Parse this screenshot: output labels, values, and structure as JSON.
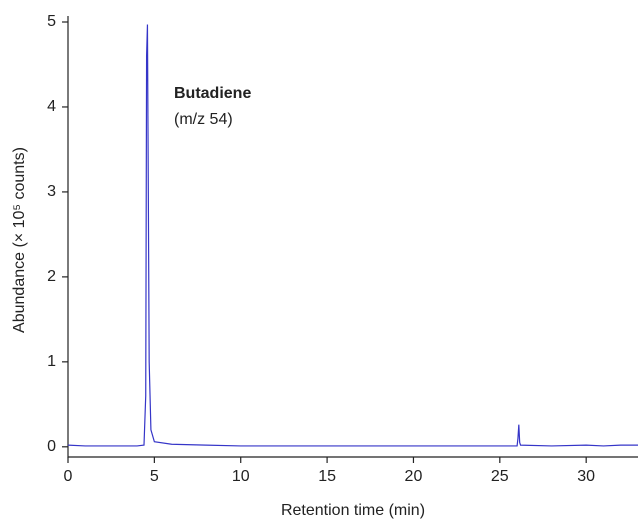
{
  "chart_data": {
    "type": "line",
    "x_label": "Retention time (min)",
    "y_label": "Abundance (× 10⁵ counts)",
    "annotation_title": "Butadiene",
    "annotation_subtitle": "(m/z 54)",
    "x": [
      0,
      1,
      2,
      3,
      4,
      4.4,
      4.5,
      4.55,
      4.6,
      4.65,
      4.7,
      4.8,
      5,
      6,
      8,
      10,
      15,
      20,
      25,
      26,
      26.05,
      26.1,
      26.15,
      26.2,
      28,
      30,
      31,
      32,
      33
    ],
    "values": [
      0.02,
      0.01,
      0.01,
      0.01,
      0.01,
      0.02,
      0.6,
      4.6,
      4.97,
      3.0,
      1.0,
      0.2,
      0.06,
      0.03,
      0.02,
      0.01,
      0.01,
      0.01,
      0.01,
      0.01,
      0.1,
      0.26,
      0.05,
      0.02,
      0.01,
      0.02,
      0.01,
      0.02,
      0.02
    ],
    "color": "#3535c8",
    "xlim": [
      0,
      33
    ],
    "xticks": [
      0,
      5,
      10,
      15,
      20,
      25,
      30
    ],
    "ylim": [
      -0.12,
      5
    ],
    "yticks": [
      0,
      1,
      2,
      3,
      4,
      5
    ]
  }
}
